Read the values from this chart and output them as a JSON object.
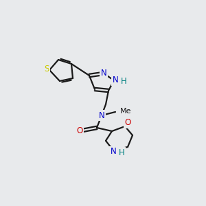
{
  "background_color": "#e8eaec",
  "bond_color": "#1a1a1a",
  "atom_colors": {
    "S": "#cccc00",
    "N": "#0000cc",
    "O": "#cc0000",
    "H": "#008080",
    "C": "#1a1a1a"
  },
  "figsize": [
    3.0,
    3.0
  ],
  "dpi": 100
}
